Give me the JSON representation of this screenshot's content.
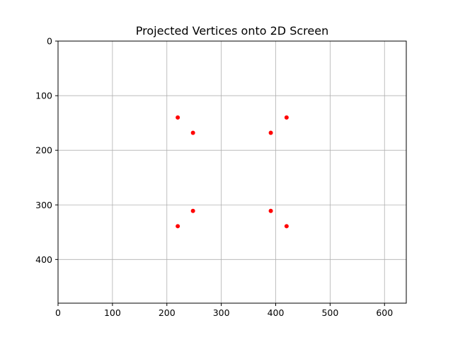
{
  "chart_data": {
    "type": "scatter",
    "title": "Projected Vertices onto 2D Screen",
    "xlabel": "",
    "ylabel": "",
    "xlim": [
      0,
      640
    ],
    "ylim": [
      480,
      0
    ],
    "y_inverted": true,
    "grid": true,
    "x_ticks": [
      0,
      100,
      200,
      300,
      400,
      500,
      600
    ],
    "y_ticks": [
      0,
      100,
      200,
      300,
      400
    ],
    "x_tick_labels": [
      "0",
      "100",
      "200",
      "300",
      "400",
      "500",
      "600"
    ],
    "y_tick_labels": [
      "0",
      "100",
      "200",
      "300",
      "400"
    ],
    "series": [
      {
        "marker_color": "#ff0000",
        "points": [
          {
            "x": 220,
            "y": 140
          },
          {
            "x": 420,
            "y": 140
          },
          {
            "x": 248,
            "y": 168
          },
          {
            "x": 391,
            "y": 168
          },
          {
            "x": 248,
            "y": 311
          },
          {
            "x": 391,
            "y": 311
          },
          {
            "x": 220,
            "y": 339
          },
          {
            "x": 420,
            "y": 339
          }
        ]
      }
    ],
    "colors": {
      "grid": "#b0b0b0",
      "axes": "#000000",
      "background": "#ffffff"
    }
  }
}
